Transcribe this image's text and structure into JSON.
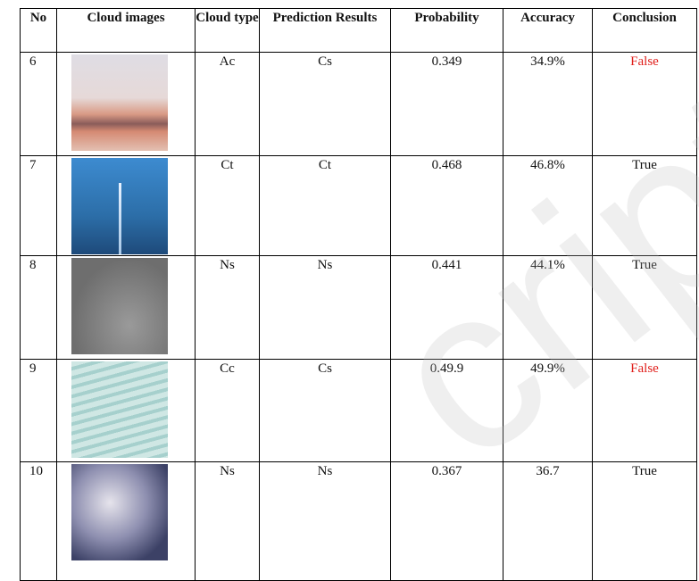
{
  "table": {
    "header": [
      "No",
      "Cloud images",
      "Cloud type",
      "Prediction Results",
      "Probability",
      "Accuracy",
      "Conclusion"
    ],
    "rows": [
      [
        "6",
        "Ac",
        "Cs",
        "0.349",
        "34.9%",
        "False"
      ],
      [
        "7",
        "Ct",
        "Ct",
        "0.468",
        "46.8%",
        "True"
      ],
      [
        "8",
        "Ns",
        "Ns",
        "0.441",
        "44.1%",
        "True"
      ],
      [
        "9",
        "Cc",
        "Cs",
        "0.49.9",
        "49.9%",
        "False"
      ],
      [
        "10",
        "Ns",
        "Ns",
        "0.367",
        "36.7",
        "True"
      ]
    ]
  },
  "watermark": "cript"
}
